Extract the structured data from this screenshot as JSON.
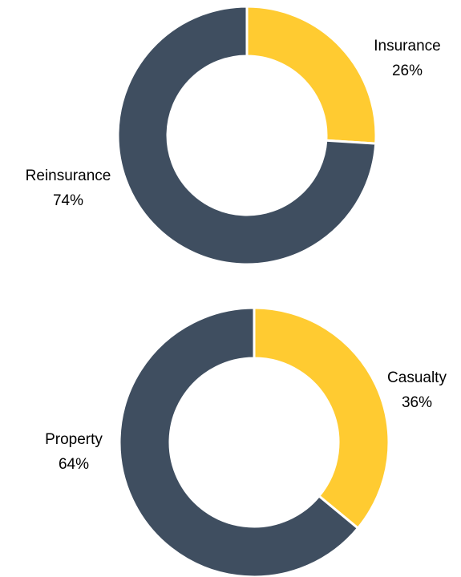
{
  "chart_data": [
    {
      "type": "pie",
      "categories": [
        "Insurance",
        "Reinsurance"
      ],
      "values": [
        26,
        74
      ],
      "value_labels": [
        "26%",
        "74%"
      ],
      "colors": [
        "#FFCB31",
        "#3F4E60"
      ]
    },
    {
      "type": "pie",
      "categories": [
        "Casualty",
        "Property"
      ],
      "values": [
        36,
        64
      ],
      "value_labels": [
        "36%",
        "64%"
      ],
      "colors": [
        "#FFCB31",
        "#3F4E60"
      ]
    }
  ]
}
